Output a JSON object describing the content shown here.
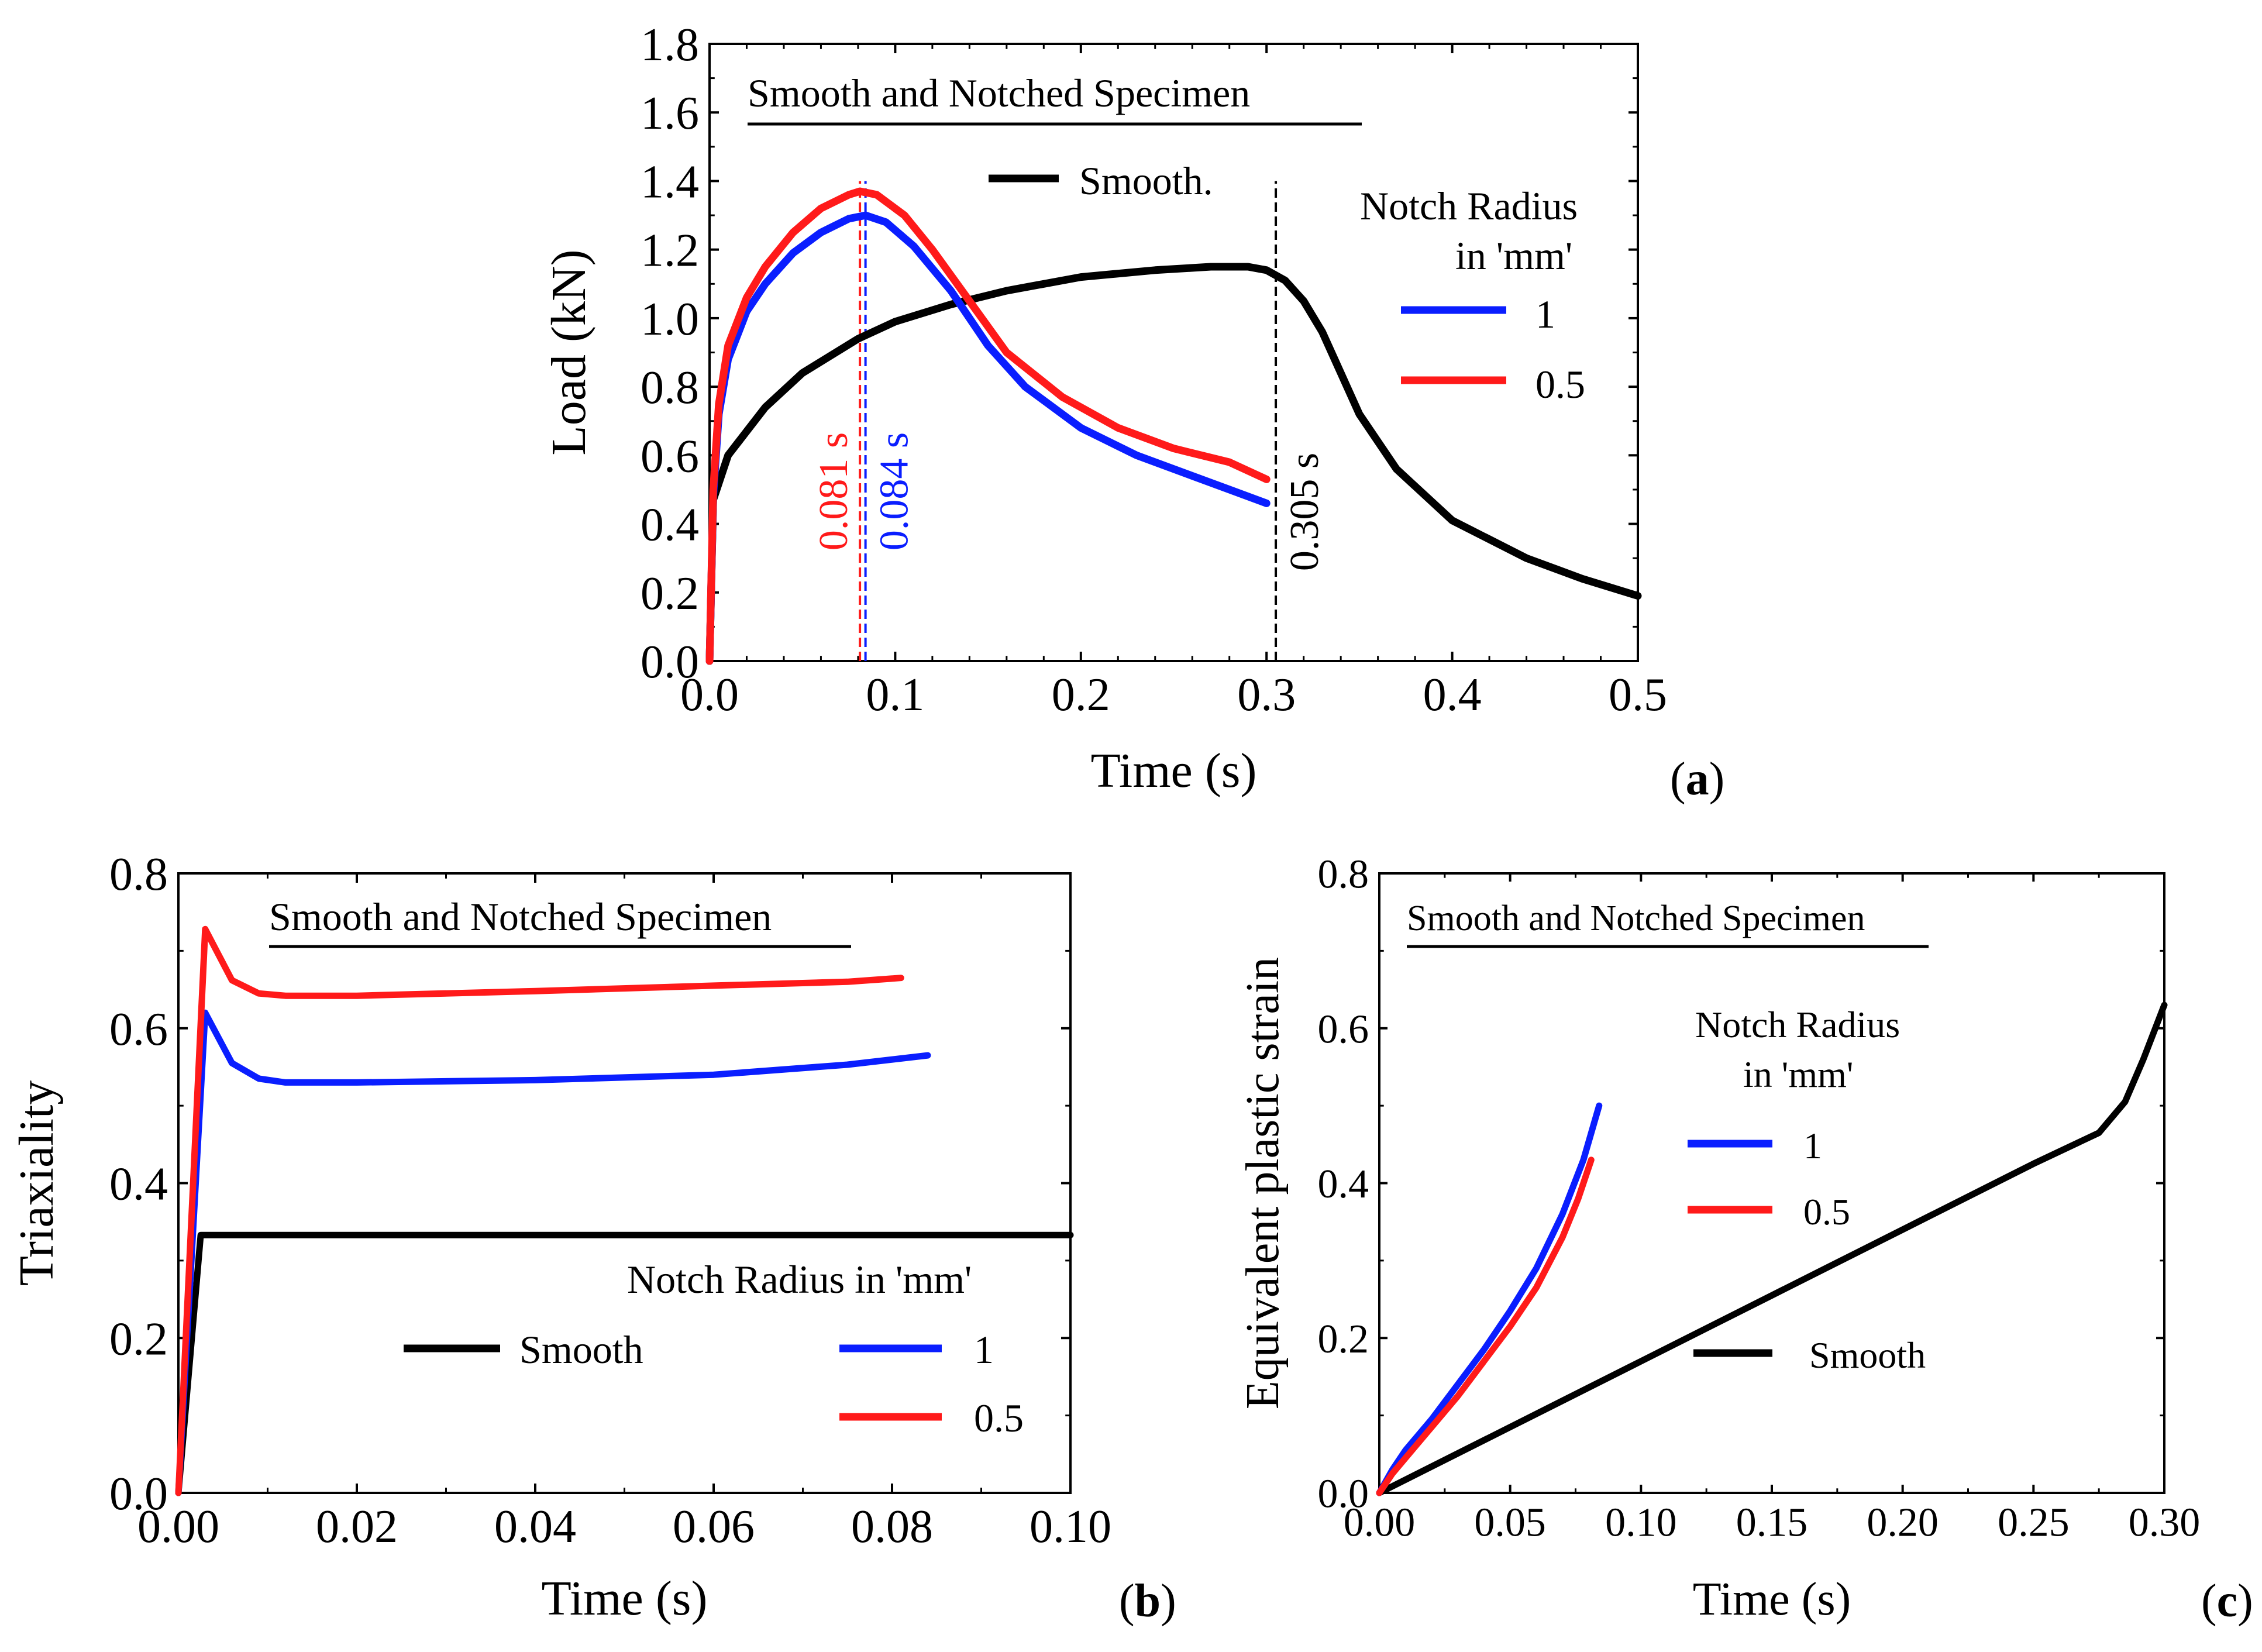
{
  "colors": {
    "smooth": "#000000",
    "r1": "#0a1eff",
    "r05": "#ff1a1a",
    "axis": "#000000"
  },
  "chart_data": [
    {
      "id": "a",
      "type": "line",
      "panel_label": "a",
      "title": "Smooth and Notched Specimen",
      "xlabel": "Time (s)",
      "ylabel": "Load (kN)",
      "xlim": [
        0,
        0.5
      ],
      "ylim": [
        0,
        1.8
      ],
      "xticks": [
        0,
        0.1,
        0.2,
        0.3,
        0.4,
        0.5
      ],
      "xtick_labels": [
        "0.0",
        "0.1",
        "0.2",
        "0.3",
        "0.4",
        "0.5"
      ],
      "yticks": [
        0,
        0.2,
        0.4,
        0.6,
        0.8,
        1.0,
        1.2,
        1.4,
        1.6,
        1.8
      ],
      "ytick_labels": [
        "0.0",
        "0.2",
        "0.4",
        "0.6",
        "0.8",
        "1.0",
        "1.2",
        "1.4",
        "1.6",
        "1.8"
      ],
      "legend_smooth_label": "Smooth.",
      "legend_title_line1": "Notch Radius",
      "legend_title_line2": "in 'mm'",
      "series": [
        {
          "name": "Smooth.",
          "color": "#000000",
          "x": [
            0,
            0.002,
            0.01,
            0.03,
            0.05,
            0.08,
            0.1,
            0.13,
            0.16,
            0.2,
            0.24,
            0.27,
            0.29,
            0.3,
            0.31,
            0.32,
            0.33,
            0.34,
            0.35,
            0.37,
            0.4,
            0.44,
            0.47,
            0.5
          ],
          "y": [
            0,
            0.47,
            0.6,
            0.74,
            0.84,
            0.94,
            0.99,
            1.04,
            1.08,
            1.12,
            1.14,
            1.15,
            1.15,
            1.14,
            1.11,
            1.05,
            0.96,
            0.84,
            0.72,
            0.56,
            0.41,
            0.3,
            0.24,
            0.19
          ]
        },
        {
          "name": "1",
          "color": "#0a1eff",
          "x": [
            0,
            0.002,
            0.005,
            0.01,
            0.02,
            0.03,
            0.045,
            0.06,
            0.075,
            0.084,
            0.095,
            0.11,
            0.13,
            0.15,
            0.17,
            0.2,
            0.23,
            0.26,
            0.28,
            0.3
          ],
          "y": [
            0,
            0.48,
            0.72,
            0.88,
            1.02,
            1.1,
            1.19,
            1.25,
            1.29,
            1.3,
            1.28,
            1.21,
            1.08,
            0.92,
            0.8,
            0.68,
            0.6,
            0.54,
            0.5,
            0.46
          ]
        },
        {
          "name": "0.5",
          "color": "#ff1a1a",
          "x": [
            0,
            0.002,
            0.005,
            0.01,
            0.02,
            0.03,
            0.045,
            0.06,
            0.075,
            0.081,
            0.09,
            0.105,
            0.12,
            0.14,
            0.16,
            0.19,
            0.22,
            0.25,
            0.28,
            0.3
          ],
          "y": [
            0,
            0.5,
            0.75,
            0.92,
            1.06,
            1.15,
            1.25,
            1.32,
            1.36,
            1.37,
            1.36,
            1.3,
            1.2,
            1.05,
            0.9,
            0.77,
            0.68,
            0.62,
            0.58,
            0.53
          ]
        }
      ],
      "vlines": [
        {
          "x": 0.081,
          "label": "0.081 s",
          "color": "#ff1a1a",
          "ymax": 1.4
        },
        {
          "x": 0.084,
          "label": "0.084 s",
          "color": "#0a1eff",
          "ymax": 1.4
        },
        {
          "x": 0.305,
          "label": "0.305 s",
          "color": "#000000",
          "ymax": 1.4
        }
      ]
    },
    {
      "id": "b",
      "type": "line",
      "panel_label": "b",
      "title": "Smooth and Notched Specimen",
      "xlabel": "Time (s)",
      "ylabel": "Triaxiality",
      "xlim": [
        0,
        0.1
      ],
      "ylim": [
        0,
        0.8
      ],
      "xticks": [
        0,
        0.02,
        0.04,
        0.06,
        0.08,
        0.1
      ],
      "xtick_labels": [
        "0.00",
        "0.02",
        "0.04",
        "0.06",
        "0.08",
        "0.10"
      ],
      "yticks": [
        0,
        0.2,
        0.4,
        0.6,
        0.8
      ],
      "ytick_labels": [
        "0.0",
        "0.2",
        "0.4",
        "0.6",
        "0.8"
      ],
      "legend_title": "Notch Radius in 'mm'",
      "legend_smooth_label": "Smooth",
      "series": [
        {
          "name": "Smooth",
          "color": "#000000",
          "x": [
            0,
            0.0025,
            0.005,
            0.02,
            0.05,
            0.08,
            0.1
          ],
          "y": [
            0,
            0.333,
            0.333,
            0.333,
            0.333,
            0.333,
            0.333
          ]
        },
        {
          "name": "1",
          "color": "#0a1eff",
          "x": [
            0,
            0.003,
            0.006,
            0.009,
            0.012,
            0.02,
            0.04,
            0.06,
            0.075,
            0.084
          ],
          "y": [
            0,
            0.62,
            0.555,
            0.535,
            0.53,
            0.53,
            0.533,
            0.54,
            0.553,
            0.565
          ]
        },
        {
          "name": "0.5",
          "color": "#ff1a1a",
          "x": [
            0,
            0.003,
            0.006,
            0.009,
            0.012,
            0.02,
            0.04,
            0.06,
            0.075,
            0.081
          ],
          "y": [
            0,
            0.728,
            0.662,
            0.645,
            0.642,
            0.642,
            0.648,
            0.655,
            0.66,
            0.665
          ]
        }
      ]
    },
    {
      "id": "c",
      "type": "line",
      "panel_label": "c",
      "title": "Smooth and Notched Specimen",
      "xlabel": "Time (s)",
      "ylabel": "Equivalent plastic strain",
      "xlim": [
        0,
        0.3
      ],
      "ylim": [
        0,
        0.8
      ],
      "xticks": [
        0,
        0.05,
        0.1,
        0.15,
        0.2,
        0.25,
        0.3
      ],
      "xtick_labels": [
        "0.00",
        "0.05",
        "0.10",
        "0.15",
        "0.20",
        "0.25",
        "0.30"
      ],
      "yticks": [
        0,
        0.2,
        0.4,
        0.6,
        0.8
      ],
      "ytick_labels": [
        "0.0",
        "0.2",
        "0.4",
        "0.6",
        "0.8"
      ],
      "legend_title_line1": "Notch Radius",
      "legend_title_line2": "in 'mm'",
      "legend_smooth_label": "Smooth",
      "series": [
        {
          "name": "Smooth",
          "color": "#000000",
          "x": [
            0,
            0.05,
            0.1,
            0.15,
            0.2,
            0.25,
            0.275,
            0.285,
            0.292,
            0.3
          ],
          "y": [
            0,
            0.085,
            0.17,
            0.255,
            0.34,
            0.425,
            0.465,
            0.505,
            0.56,
            0.63
          ]
        },
        {
          "name": "1",
          "color": "#0a1eff",
          "x": [
            0,
            0.005,
            0.01,
            0.02,
            0.03,
            0.04,
            0.05,
            0.06,
            0.07,
            0.078,
            0.084
          ],
          "y": [
            0,
            0.03,
            0.055,
            0.095,
            0.14,
            0.185,
            0.235,
            0.29,
            0.36,
            0.43,
            0.5
          ]
        },
        {
          "name": "0.5",
          "color": "#ff1a1a",
          "x": [
            0,
            0.005,
            0.01,
            0.02,
            0.03,
            0.04,
            0.05,
            0.06,
            0.07,
            0.076,
            0.081
          ],
          "y": [
            0,
            0.025,
            0.045,
            0.085,
            0.125,
            0.17,
            0.215,
            0.265,
            0.33,
            0.38,
            0.43
          ]
        }
      ]
    }
  ]
}
